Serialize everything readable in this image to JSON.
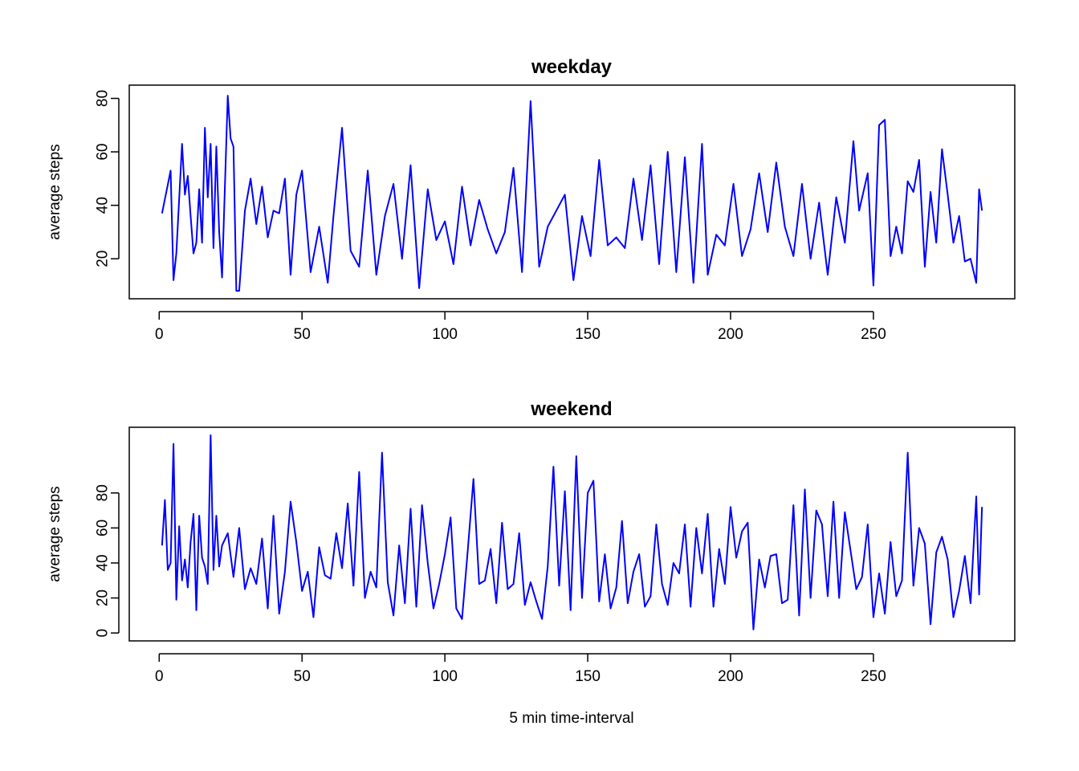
{
  "chart_data": [
    {
      "type": "line",
      "title": "weekday",
      "xlabel": "",
      "ylabel": "average steps",
      "xlim": [
        1,
        288
      ],
      "ylim": [
        8,
        82
      ],
      "x_ticks": [
        0,
        50,
        100,
        150,
        200,
        250
      ],
      "y_ticks": [
        20,
        40,
        60,
        80
      ],
      "color": "#0000ff",
      "series": [
        {
          "x": [
            1,
            4,
            5,
            6,
            8,
            9,
            10,
            11,
            12,
            13,
            14,
            15,
            16,
            17,
            18,
            19,
            20,
            21,
            22,
            24,
            25,
            26,
            27,
            28,
            30,
            32,
            34,
            36,
            38,
            40,
            42,
            44,
            46,
            48,
            50,
            53,
            56,
            59,
            61,
            64,
            67,
            70,
            73,
            76,
            79,
            82,
            85,
            88,
            91,
            94,
            97,
            100,
            103,
            106,
            109,
            112,
            115,
            118,
            121,
            124,
            127,
            130,
            133,
            136,
            139,
            142,
            145,
            148,
            151,
            154,
            157,
            160,
            163,
            166,
            169,
            172,
            175,
            178,
            181,
            184,
            187,
            190,
            192,
            195,
            198,
            201,
            204,
            207,
            210,
            213,
            216,
            219,
            222,
            225,
            228,
            231,
            234,
            237,
            240,
            243,
            245,
            248,
            250,
            252,
            254,
            256,
            258,
            260,
            262,
            264,
            266,
            268,
            270,
            272,
            274,
            276,
            278,
            280,
            282,
            284,
            286,
            287,
            288
          ],
          "y": [
            37,
            53,
            12,
            22,
            63,
            44,
            51,
            36,
            22,
            26,
            46,
            26,
            69,
            43,
            63,
            24,
            62,
            30,
            13,
            81,
            65,
            62,
            8,
            8,
            38,
            50,
            33,
            47,
            28,
            38,
            37,
            50,
            14,
            44,
            53,
            15,
            32,
            11,
            36,
            69,
            23,
            17,
            53,
            14,
            36,
            48,
            20,
            55,
            9,
            46,
            27,
            34,
            18,
            47,
            25,
            42,
            31,
            22,
            30,
            54,
            15,
            79,
            17,
            32,
            38,
            44,
            12,
            36,
            21,
            57,
            25,
            28,
            24,
            50,
            27,
            55,
            18,
            60,
            15,
            58,
            11,
            63,
            14,
            29,
            25,
            48,
            21,
            31,
            52,
            30,
            56,
            32,
            21,
            48,
            20,
            41,
            14,
            43,
            26,
            64,
            38,
            52,
            10,
            70,
            72,
            21,
            32,
            22,
            49,
            45,
            57,
            17,
            45,
            26,
            61,
            44,
            26,
            36,
            19,
            20,
            11,
            46,
            38
          ]
        }
      ]
    },
    {
      "type": "line",
      "title": "weekend",
      "xlabel": "5 min time-interval",
      "ylabel": "average steps",
      "xlim": [
        1,
        288
      ],
      "ylim": [
        0,
        113
      ],
      "x_ticks": [
        0,
        50,
        100,
        150,
        200,
        250
      ],
      "y_ticks": [
        0,
        20,
        40,
        60,
        80
      ],
      "color": "#0000ff",
      "series": [
        {
          "x": [
            1,
            2,
            3,
            4,
            5,
            6,
            7,
            8,
            9,
            10,
            11,
            12,
            13,
            14,
            15,
            16,
            17,
            18,
            19,
            20,
            21,
            22,
            24,
            26,
            28,
            30,
            32,
            34,
            36,
            38,
            40,
            42,
            44,
            46,
            48,
            50,
            52,
            54,
            56,
            58,
            60,
            62,
            64,
            66,
            68,
            70,
            72,
            74,
            76,
            78,
            80,
            82,
            84,
            86,
            88,
            90,
            92,
            94,
            96,
            98,
            100,
            102,
            104,
            106,
            108,
            110,
            112,
            114,
            116,
            118,
            120,
            122,
            124,
            126,
            128,
            130,
            132,
            134,
            136,
            138,
            140,
            142,
            144,
            146,
            148,
            150,
            152,
            154,
            156,
            158,
            160,
            162,
            164,
            166,
            168,
            170,
            172,
            174,
            176,
            178,
            180,
            182,
            184,
            186,
            188,
            190,
            192,
            194,
            196,
            198,
            200,
            202,
            204,
            206,
            208,
            210,
            212,
            214,
            216,
            218,
            220,
            222,
            224,
            226,
            228,
            230,
            232,
            234,
            236,
            238,
            240,
            242,
            244,
            246,
            248,
            250,
            252,
            254,
            256,
            258,
            260,
            262,
            264,
            266,
            268,
            270,
            272,
            274,
            276,
            278,
            280,
            282,
            284,
            286,
            287,
            288
          ],
          "y": [
            50,
            76,
            36,
            40,
            108,
            19,
            61,
            30,
            42,
            26,
            52,
            68,
            13,
            67,
            43,
            38,
            28,
            113,
            36,
            67,
            38,
            50,
            57,
            32,
            60,
            25,
            37,
            28,
            54,
            14,
            67,
            11,
            35,
            75,
            52,
            24,
            35,
            9,
            49,
            33,
            31,
            57,
            37,
            74,
            27,
            92,
            20,
            35,
            26,
            103,
            29,
            10,
            50,
            17,
            71,
            15,
            73,
            40,
            14,
            28,
            45,
            66,
            14,
            8,
            47,
            88,
            28,
            30,
            48,
            17,
            63,
            25,
            28,
            57,
            16,
            29,
            18,
            8,
            38,
            95,
            27,
            81,
            13,
            101,
            20,
            80,
            87,
            18,
            45,
            14,
            26,
            64,
            17,
            35,
            45,
            15,
            21,
            62,
            28,
            16,
            40,
            34,
            62,
            15,
            60,
            34,
            68,
            15,
            48,
            28,
            72,
            43,
            58,
            63,
            2,
            42,
            26,
            44,
            45,
            17,
            19,
            73,
            10,
            82,
            20,
            70,
            62,
            21,
            75,
            20,
            69,
            47,
            25,
            32,
            62,
            9,
            34,
            11,
            52,
            21,
            30,
            103,
            27,
            60,
            51,
            5,
            46,
            55,
            42,
            9,
            24,
            44,
            17,
            78,
            22,
            72
          ]
        }
      ]
    }
  ]
}
